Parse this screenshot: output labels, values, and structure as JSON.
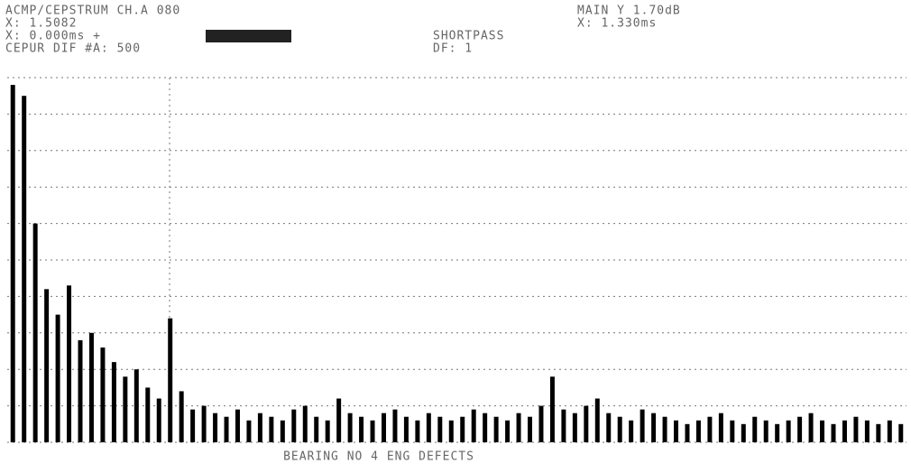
{
  "header": {
    "left": [
      "ACMP/CEPSTRUM CH.A  080",
      "X: 1.5082",
      "X: 0.000ms +",
      "CEPUR DIF   #A: 500"
    ],
    "middle": [
      "SHORTPASS",
      "DF: 1"
    ],
    "right": [
      "MAIN  Y    1.70dB",
      "X: 1.330ms"
    ]
  },
  "chart_data": {
    "type": "bar",
    "color": "#000000",
    "values": [
      9.8,
      9.5,
      6.0,
      4.2,
      3.5,
      4.3,
      2.8,
      3.0,
      2.6,
      2.2,
      1.8,
      2.0,
      1.5,
      1.2,
      3.4,
      1.4,
      0.9,
      1.0,
      0.8,
      0.7,
      0.9,
      0.6,
      0.8,
      0.7,
      0.6,
      0.9,
      1.0,
      0.7,
      0.6,
      1.2,
      0.8,
      0.7,
      0.6,
      0.8,
      0.9,
      0.7,
      0.6,
      0.8,
      0.7,
      0.6,
      0.7,
      0.9,
      0.8,
      0.7,
      0.6,
      0.8,
      0.7,
      1.0,
      1.8,
      0.9,
      0.8,
      1.0,
      1.2,
      0.8,
      0.7,
      0.6,
      0.9,
      0.8,
      0.7,
      0.6,
      0.5,
      0.6,
      0.7,
      0.8,
      0.6,
      0.5,
      0.7,
      0.6,
      0.5,
      0.6,
      0.7,
      0.8,
      0.6,
      0.5,
      0.6,
      0.7,
      0.6,
      0.5,
      0.6,
      0.5
    ],
    "ylim": [
      0,
      10
    ],
    "yticks": [
      0,
      1,
      2,
      3,
      4,
      5,
      6,
      7,
      8,
      9,
      10
    ],
    "grid": true,
    "caption": "BEARING NO  4 ENG DEFECTS"
  }
}
